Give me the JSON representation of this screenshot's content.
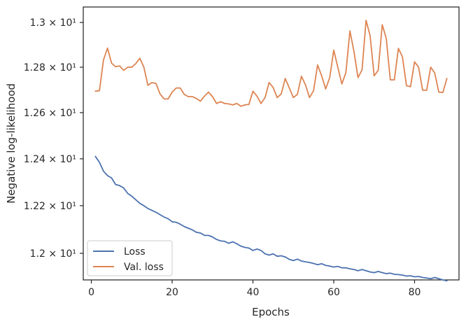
{
  "chart_data": {
    "type": "line",
    "xlabel": "Epochs",
    "ylabel": "Negative log-likelihood",
    "xlim": [
      -2,
      91
    ],
    "ylim": [
      11.89,
      13.07
    ],
    "yscale": "log",
    "xticks": [
      {
        "value": 0,
        "label": "0"
      },
      {
        "value": 20,
        "label": "20"
      },
      {
        "value": 40,
        "label": "40"
      },
      {
        "value": 60,
        "label": "60"
      },
      {
        "value": 80,
        "label": "80"
      }
    ],
    "yticks": [
      {
        "value": 12.0,
        "label": "1.2 × 10¹"
      },
      {
        "value": 12.2,
        "label": "1.22 × 10¹"
      },
      {
        "value": 12.4,
        "label": "1.24 × 10¹"
      },
      {
        "value": 12.6,
        "label": "1.26 × 10¹"
      },
      {
        "value": 12.8,
        "label": "1.28 × 10¹"
      },
      {
        "value": 13.0,
        "label": "1.3 × 10¹"
      }
    ],
    "grid": false,
    "legend_position": "lower-left",
    "x": [
      1,
      2,
      3,
      4,
      5,
      6,
      7,
      8,
      9,
      10,
      11,
      12,
      13,
      14,
      15,
      16,
      17,
      18,
      19,
      20,
      21,
      22,
      23,
      24,
      25,
      26,
      27,
      28,
      29,
      30,
      31,
      32,
      33,
      34,
      35,
      36,
      37,
      38,
      39,
      40,
      41,
      42,
      43,
      44,
      45,
      46,
      47,
      48,
      49,
      50,
      51,
      52,
      53,
      54,
      55,
      56,
      57,
      58,
      59,
      60,
      61,
      62,
      63,
      64,
      65,
      66,
      67,
      68,
      69,
      70,
      71,
      72,
      73,
      74,
      75,
      76,
      77,
      78,
      79,
      80,
      81,
      82,
      83,
      84,
      85,
      86,
      87,
      88
    ],
    "series": [
      {
        "name": "Loss",
        "color": "#4c72b0",
        "values": [
          12.41,
          12.385,
          12.347,
          12.328,
          12.318,
          12.29,
          12.285,
          12.275,
          12.252,
          12.24,
          12.225,
          12.21,
          12.2,
          12.188,
          12.18,
          12.172,
          12.162,
          12.152,
          12.145,
          12.132,
          12.13,
          12.122,
          12.112,
          12.105,
          12.098,
          12.088,
          12.085,
          12.075,
          12.075,
          12.068,
          12.058,
          12.052,
          12.05,
          12.042,
          12.048,
          12.04,
          12.03,
          12.025,
          12.022,
          12.012,
          12.018,
          12.012,
          11.998,
          11.993,
          11.998,
          11.988,
          11.99,
          11.985,
          11.975,
          11.97,
          11.976,
          11.968,
          11.965,
          11.962,
          11.958,
          11.953,
          11.957,
          11.95,
          11.947,
          11.943,
          11.946,
          11.94,
          11.94,
          11.936,
          11.933,
          11.928,
          11.933,
          11.928,
          11.923,
          11.92,
          11.925,
          11.92,
          11.916,
          11.918,
          11.913,
          11.912,
          11.91,
          11.906,
          11.907,
          11.903,
          11.904,
          11.9,
          11.898,
          11.895,
          11.9,
          11.895,
          11.89,
          11.886
        ]
      },
      {
        "name": "Val. loss",
        "color": "#dd8452",
        "values": [
          12.694,
          12.696,
          12.832,
          12.885,
          12.818,
          12.802,
          12.806,
          12.786,
          12.8,
          12.8,
          12.816,
          12.84,
          12.8,
          12.72,
          12.732,
          12.728,
          12.682,
          12.66,
          12.66,
          12.69,
          12.708,
          12.708,
          12.68,
          12.67,
          12.67,
          12.662,
          12.65,
          12.672,
          12.69,
          12.67,
          12.64,
          12.648,
          12.64,
          12.638,
          12.634,
          12.64,
          12.628,
          12.634,
          12.636,
          12.694,
          12.672,
          12.64,
          12.666,
          12.732,
          12.71,
          12.666,
          12.682,
          12.75,
          12.708,
          12.666,
          12.68,
          12.76,
          12.722,
          12.666,
          12.696,
          12.81,
          12.762,
          12.704,
          12.754,
          12.876,
          12.8,
          12.726,
          12.776,
          12.962,
          12.87,
          12.754,
          12.788,
          13.01,
          12.94,
          12.762,
          12.786,
          12.99,
          12.928,
          12.744,
          12.744,
          12.884,
          12.846,
          12.718,
          12.714,
          12.824,
          12.8,
          12.698,
          12.698,
          12.8,
          12.774,
          12.69,
          12.688,
          12.75
        ]
      }
    ]
  }
}
